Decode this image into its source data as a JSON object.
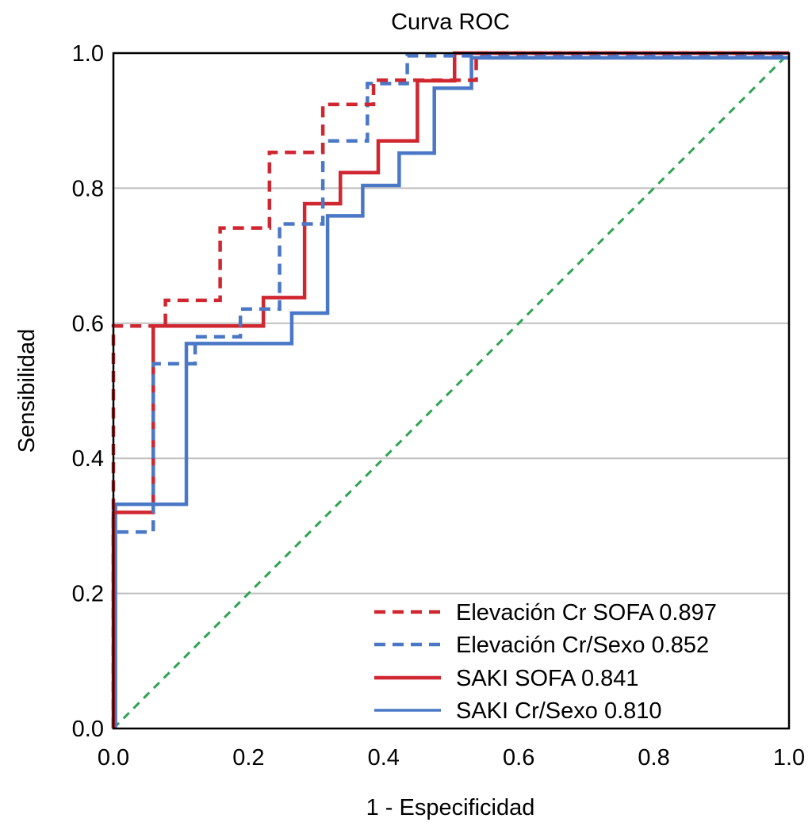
{
  "chart_data": {
    "type": "line",
    "title": "Curva ROC",
    "xlabel": "1 - Especificidad",
    "ylabel": "Sensibilidad",
    "xlim": [
      0,
      1
    ],
    "ylim": [
      0,
      1
    ],
    "x_ticks": [
      "0.0",
      "0.2",
      "0.4",
      "0.6",
      "0.8",
      "1.0"
    ],
    "y_ticks": [
      "0.0",
      "0.2",
      "0.4",
      "0.6",
      "0.8",
      "1.0"
    ],
    "grid": "horizontal",
    "legend_position": "bottom-right",
    "series": [
      {
        "name": "Elevación Cr SOFA 0.897",
        "auc": 0.897,
        "color": "#cf2630",
        "style": "dashed",
        "points": [
          [
            0,
            0
          ],
          [
            0,
            0.596
          ],
          [
            0.077,
            0.596
          ],
          [
            0.077,
            0.634
          ],
          [
            0.158,
            0.634
          ],
          [
            0.158,
            0.741
          ],
          [
            0.231,
            0.741
          ],
          [
            0.231,
            0.853
          ],
          [
            0.31,
            0.853
          ],
          [
            0.31,
            0.924
          ],
          [
            0.385,
            0.924
          ],
          [
            0.385,
            0.96
          ],
          [
            0.537,
            0.96
          ],
          [
            0.537,
            1.0
          ],
          [
            1,
            1
          ]
        ]
      },
      {
        "name": "Elevación Cr/Sexo 0.852",
        "auc": 0.852,
        "color": "#4a78c6",
        "style": "dashed",
        "points": [
          [
            0,
            0
          ],
          [
            0,
            0.291
          ],
          [
            0.059,
            0.291
          ],
          [
            0.059,
            0.54
          ],
          [
            0.121,
            0.54
          ],
          [
            0.121,
            0.58
          ],
          [
            0.188,
            0.58
          ],
          [
            0.188,
            0.621
          ],
          [
            0.246,
            0.621
          ],
          [
            0.246,
            0.747
          ],
          [
            0.31,
            0.747
          ],
          [
            0.31,
            0.87
          ],
          [
            0.376,
            0.87
          ],
          [
            0.376,
            0.955
          ],
          [
            0.435,
            0.955
          ],
          [
            0.435,
            0.996
          ],
          [
            1,
            0.996
          ]
        ]
      },
      {
        "name": "SAKI SOFA 0.841",
        "auc": 0.841,
        "color": "#cf2630",
        "style": "solid",
        "points": [
          [
            0,
            0
          ],
          [
            0,
            0.32
          ],
          [
            0.059,
            0.32
          ],
          [
            0.059,
            0.596
          ],
          [
            0.222,
            0.596
          ],
          [
            0.222,
            0.638
          ],
          [
            0.283,
            0.638
          ],
          [
            0.283,
            0.777
          ],
          [
            0.336,
            0.777
          ],
          [
            0.336,
            0.823
          ],
          [
            0.392,
            0.823
          ],
          [
            0.392,
            0.87
          ],
          [
            0.45,
            0.87
          ],
          [
            0.45,
            0.959
          ],
          [
            0.505,
            0.959
          ],
          [
            0.505,
            1.0
          ],
          [
            1,
            1
          ]
        ]
      },
      {
        "name": "SAKI Cr/Sexo 0.810",
        "auc": 0.81,
        "color": "#4a78c6",
        "style": "solid",
        "points": [
          [
            0.003,
            0
          ],
          [
            0.003,
            0.332
          ],
          [
            0.108,
            0.332
          ],
          [
            0.108,
            0.57
          ],
          [
            0.264,
            0.57
          ],
          [
            0.264,
            0.615
          ],
          [
            0.317,
            0.615
          ],
          [
            0.317,
            0.759
          ],
          [
            0.369,
            0.759
          ],
          [
            0.369,
            0.804
          ],
          [
            0.423,
            0.804
          ],
          [
            0.423,
            0.852
          ],
          [
            0.475,
            0.852
          ],
          [
            0.475,
            0.948
          ],
          [
            0.53,
            0.948
          ],
          [
            0.53,
            0.993
          ],
          [
            1,
            0.993
          ]
        ]
      }
    ],
    "reference_line": {
      "name": "chance",
      "color": "#2ea352",
      "style": "dashed",
      "points": [
        [
          0,
          0
        ],
        [
          1,
          1
        ]
      ]
    }
  }
}
